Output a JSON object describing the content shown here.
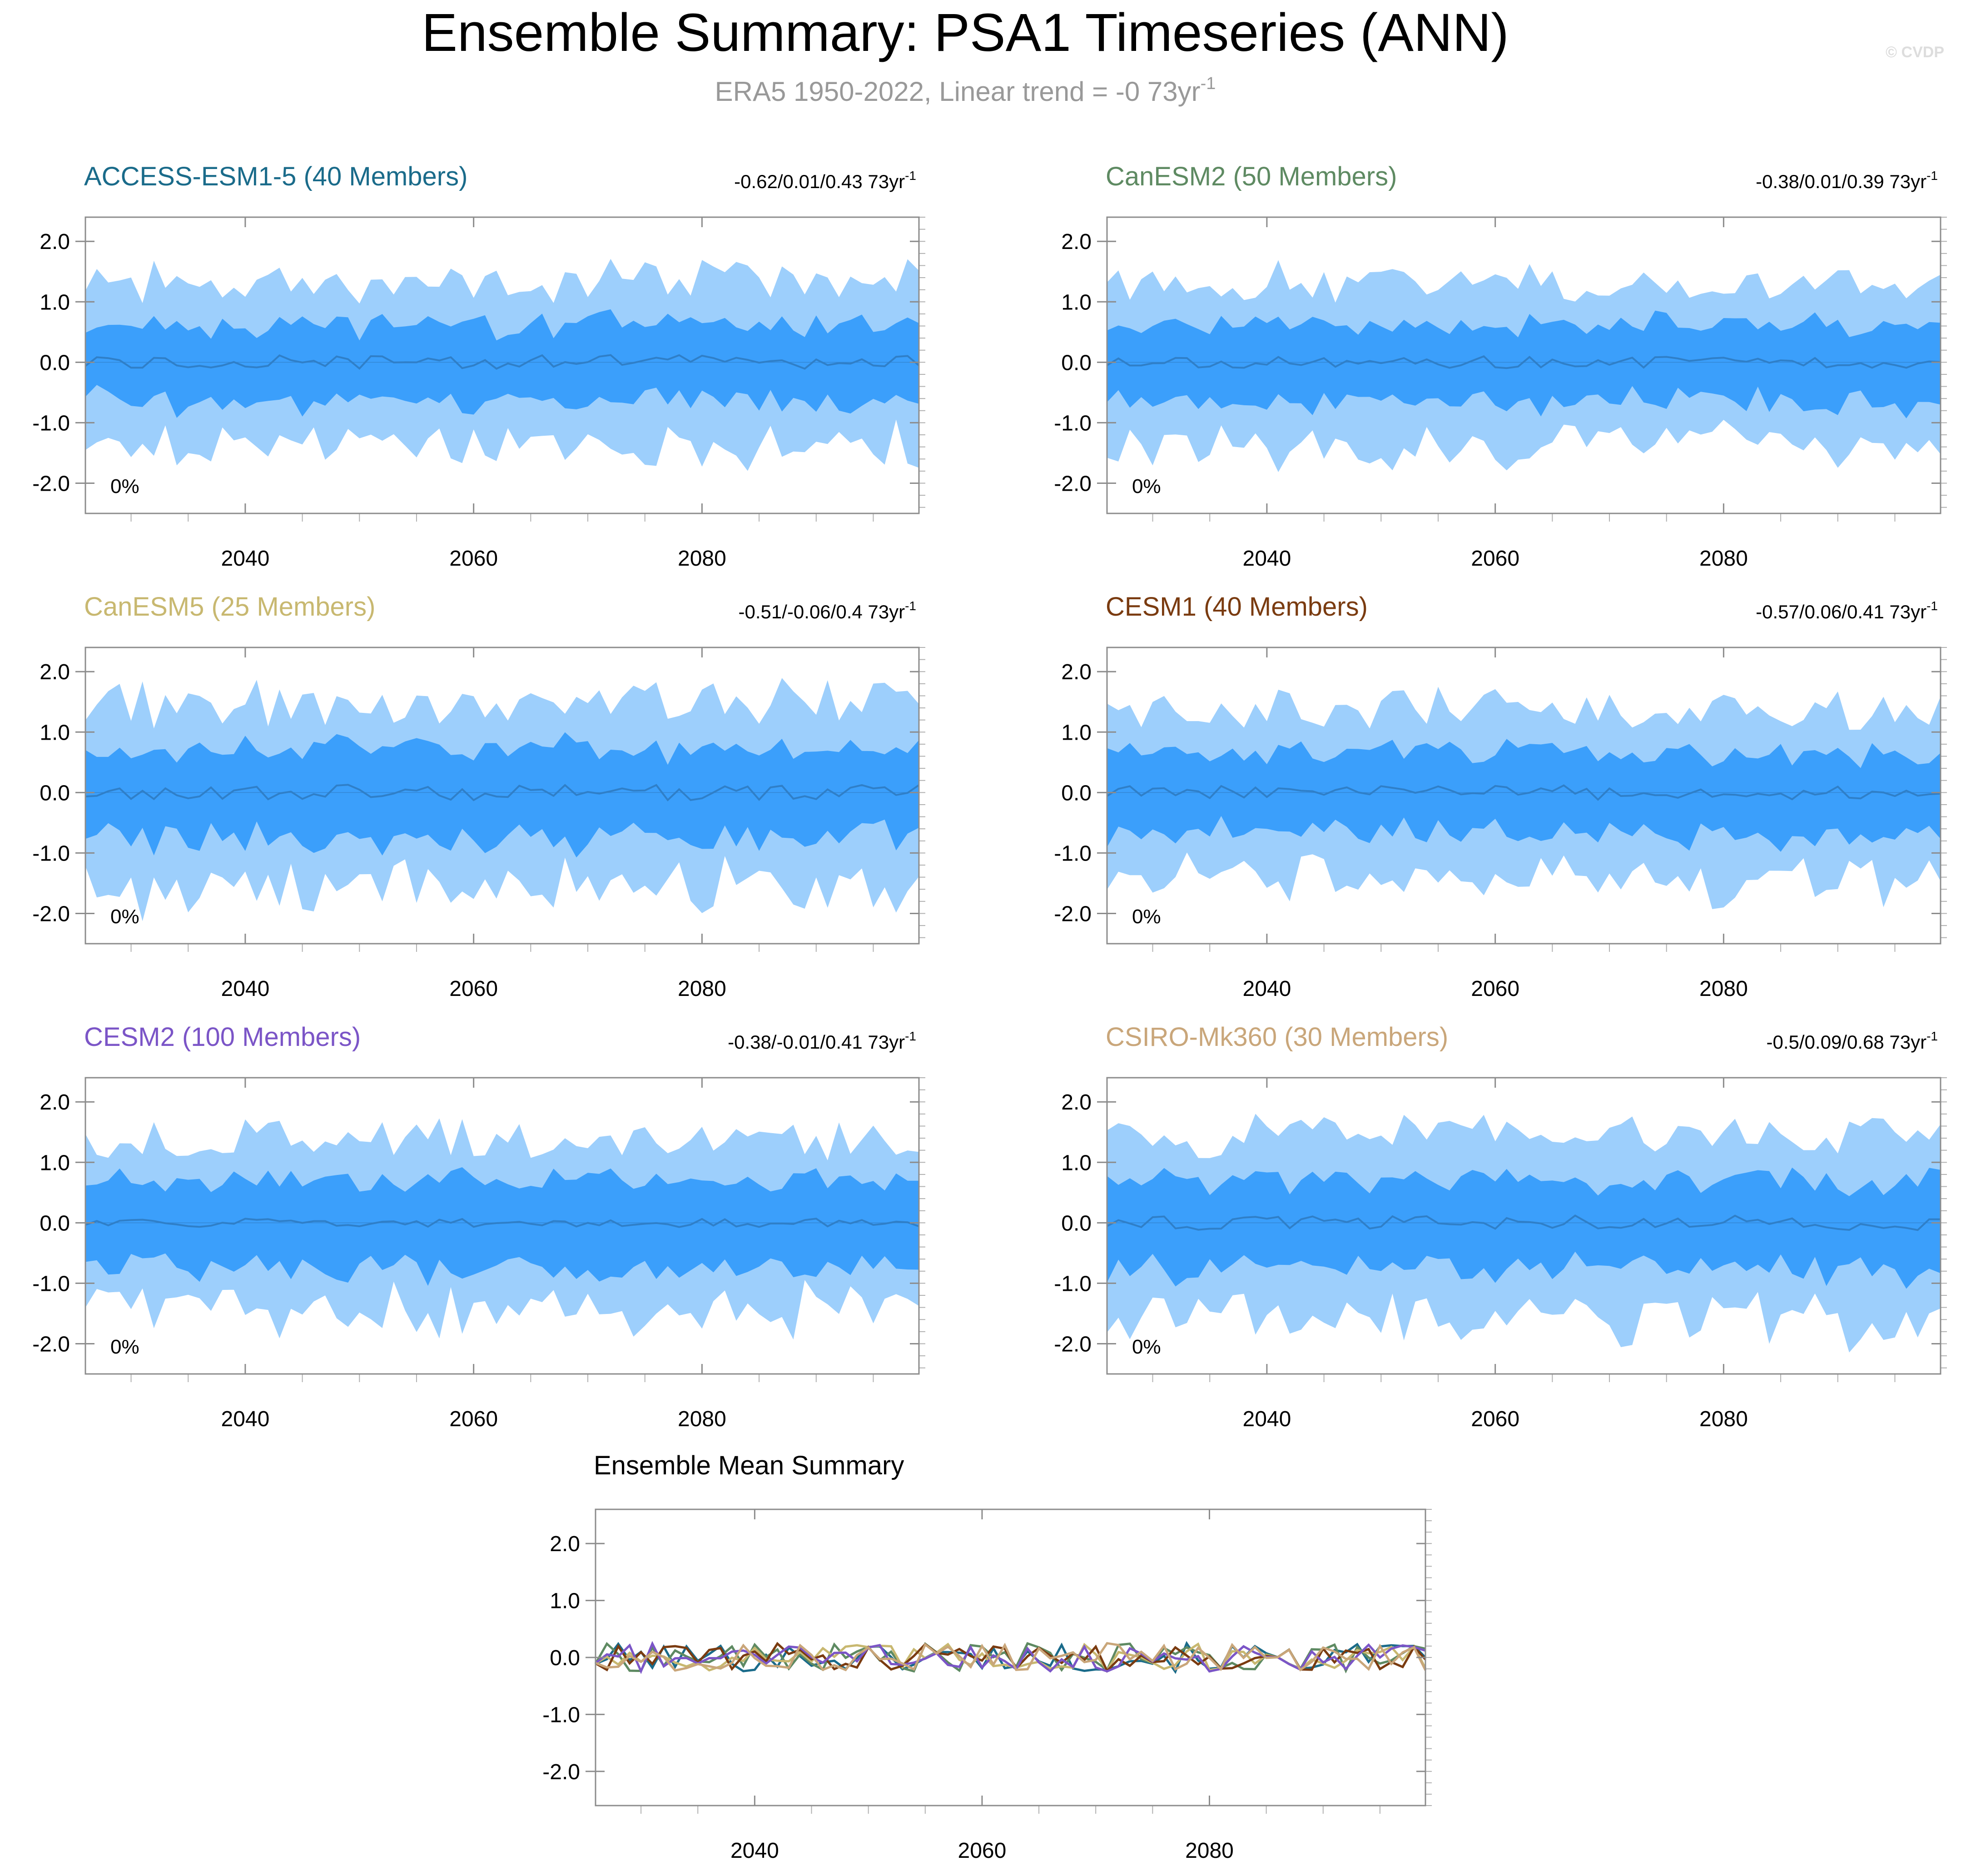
{
  "header": {
    "title": "Ensemble Summary: PSA1 Timeseries (ANN)",
    "subtitle_main": "ERA5 1950-2022, Linear trend = -0 73yr",
    "subtitle_sup": "-1",
    "watermark": "© CVDP"
  },
  "colors": {
    "band_outer": "#9dcffc",
    "band_inner": "#3b9ffb",
    "mean_line": "#2f7fc8",
    "frame": "#8c8c8c"
  },
  "chart_data": [
    {
      "type": "area",
      "title": "ACCESS-ESM1-5 (40 Members)",
      "title_color": "#1a6b8a",
      "trend_text": "-0.62/0.01/0.43 73yr",
      "trend_sup": "-1",
      "percent_label": "0%",
      "xlim": [
        2026,
        2099
      ],
      "ylim": [
        -2.5,
        2.4
      ],
      "yticks": [
        2.0,
        1.0,
        0.0,
        -1.0,
        -2.0
      ],
      "ytick_labels": [
        "2.0",
        "1.0",
        "0.0",
        "-1.0",
        "-2.0"
      ],
      "xticks": [
        2040,
        2060,
        2080
      ],
      "xtick_labels": [
        "2040",
        "2060",
        "2080"
      ],
      "seed": 11,
      "mean_amp": 0.12,
      "inner_half": 0.62,
      "outer_half": 1.3,
      "band_color": "#3b9ffb"
    },
    {
      "type": "area",
      "title": "CanESM2 (50 Members)",
      "title_color": "#5e8a62",
      "trend_text": "-0.38/0.01/0.39 73yr",
      "trend_sup": "-1",
      "percent_label": "0%",
      "xlim": [
        2026,
        2099
      ],
      "ylim": [
        -2.5,
        2.4
      ],
      "yticks": [
        2.0,
        1.0,
        0.0,
        -1.0,
        -2.0
      ],
      "ytick_labels": [
        "2.0",
        "1.0",
        "0.0",
        "-1.0",
        "-2.0"
      ],
      "xticks": [
        2040,
        2060,
        2080
      ],
      "xtick_labels": [
        "2040",
        "2060",
        "2080"
      ],
      "seed": 23,
      "mean_amp": 0.1,
      "inner_half": 0.62,
      "outer_half": 1.3
    },
    {
      "type": "area",
      "title": "CanESM5 (25 Members)",
      "title_color": "#c8b870",
      "trend_text": "-0.51/-0.06/0.4 73yr",
      "trend_sup": "-1",
      "percent_label": "0%",
      "xlim": [
        2026,
        2099
      ],
      "ylim": [
        -2.5,
        2.4
      ],
      "yticks": [
        2.0,
        1.0,
        0.0,
        -1.0,
        -2.0
      ],
      "ytick_labels": [
        "2.0",
        "1.0",
        "0.0",
        "-1.0",
        "-2.0"
      ],
      "xticks": [
        2040,
        2060,
        2080
      ],
      "xtick_labels": [
        "2040",
        "2060",
        "2080"
      ],
      "seed": 37,
      "mean_amp": 0.13,
      "inner_half": 0.72,
      "outer_half": 1.45
    },
    {
      "type": "area",
      "title": "CESM1 (40 Members)",
      "title_color": "#7a3b10",
      "trend_text": "-0.57/0.06/0.41 73yr",
      "trend_sup": "-1",
      "percent_label": "0%",
      "xlim": [
        2026,
        2099
      ],
      "ylim": [
        -2.5,
        2.4
      ],
      "yticks": [
        2.0,
        1.0,
        0.0,
        -1.0,
        -2.0
      ],
      "ytick_labels": [
        "2.0",
        "1.0",
        "0.0",
        "-1.0",
        "-2.0"
      ],
      "xticks": [
        2040,
        2060,
        2080
      ],
      "xtick_labels": [
        "2040",
        "2060",
        "2080"
      ],
      "seed": 51,
      "mean_amp": 0.12,
      "inner_half": 0.66,
      "outer_half": 1.35
    },
    {
      "type": "area",
      "title": "CESM2 (100 Members)",
      "title_color": "#7b55c7",
      "trend_text": "-0.38/-0.01/0.41 73yr",
      "trend_sup": "-1",
      "percent_label": "0%",
      "xlim": [
        2026,
        2099
      ],
      "ylim": [
        -2.5,
        2.4
      ],
      "yticks": [
        2.0,
        1.0,
        0.0,
        -1.0,
        -2.0
      ],
      "ytick_labels": [
        "2.0",
        "1.0",
        "0.0",
        "-1.0",
        "-2.0"
      ],
      "xticks": [
        2040,
        2060,
        2080
      ],
      "xtick_labels": [
        "2040",
        "2060",
        "2080"
      ],
      "seed": 67,
      "mean_amp": 0.07,
      "inner_half": 0.7,
      "outer_half": 1.35
    },
    {
      "type": "area",
      "title": "CSIRO-Mk360 (30 Members)",
      "title_color": "#c9a67a",
      "trend_text": "-0.5/0.09/0.68 73yr",
      "trend_sup": "-1",
      "percent_label": "0%",
      "xlim": [
        2026,
        2099
      ],
      "ylim": [
        -2.5,
        2.4
      ],
      "yticks": [
        2.0,
        1.0,
        0.0,
        -1.0,
        -2.0
      ],
      "ytick_labels": [
        "2.0",
        "1.0",
        "0.0",
        "-1.0",
        "-2.0"
      ],
      "xticks": [
        2040,
        2060,
        2080
      ],
      "xtick_labels": [
        "2040",
        "2060",
        "2080"
      ],
      "seed": 83,
      "mean_amp": 0.12,
      "inner_half": 0.72,
      "outer_half": 1.45
    },
    {
      "type": "line",
      "title": "Ensemble Mean Summary",
      "xlim": [
        2026,
        2099
      ],
      "ylim": [
        -2.6,
        2.6
      ],
      "yticks": [
        2.0,
        1.0,
        0.0,
        -1.0,
        -2.0
      ],
      "ytick_labels": [
        "2.0",
        "1.0",
        "0.0",
        "-1.0",
        "-2.0"
      ],
      "xticks": [
        2040,
        2060,
        2080
      ],
      "xtick_labels": [
        "2040",
        "2060",
        "2080"
      ],
      "series": [
        {
          "name": "ACCESS-ESM1-5",
          "color": "#1a6b8a"
        },
        {
          "name": "CanESM2",
          "color": "#5e8a62"
        },
        {
          "name": "CanESM5",
          "color": "#c8b870"
        },
        {
          "name": "CESM1",
          "color": "#7a3b10"
        },
        {
          "name": "CESM2",
          "color": "#7b55c7"
        },
        {
          "name": "CSIRO-Mk360",
          "color": "#c9a67a"
        }
      ]
    }
  ]
}
